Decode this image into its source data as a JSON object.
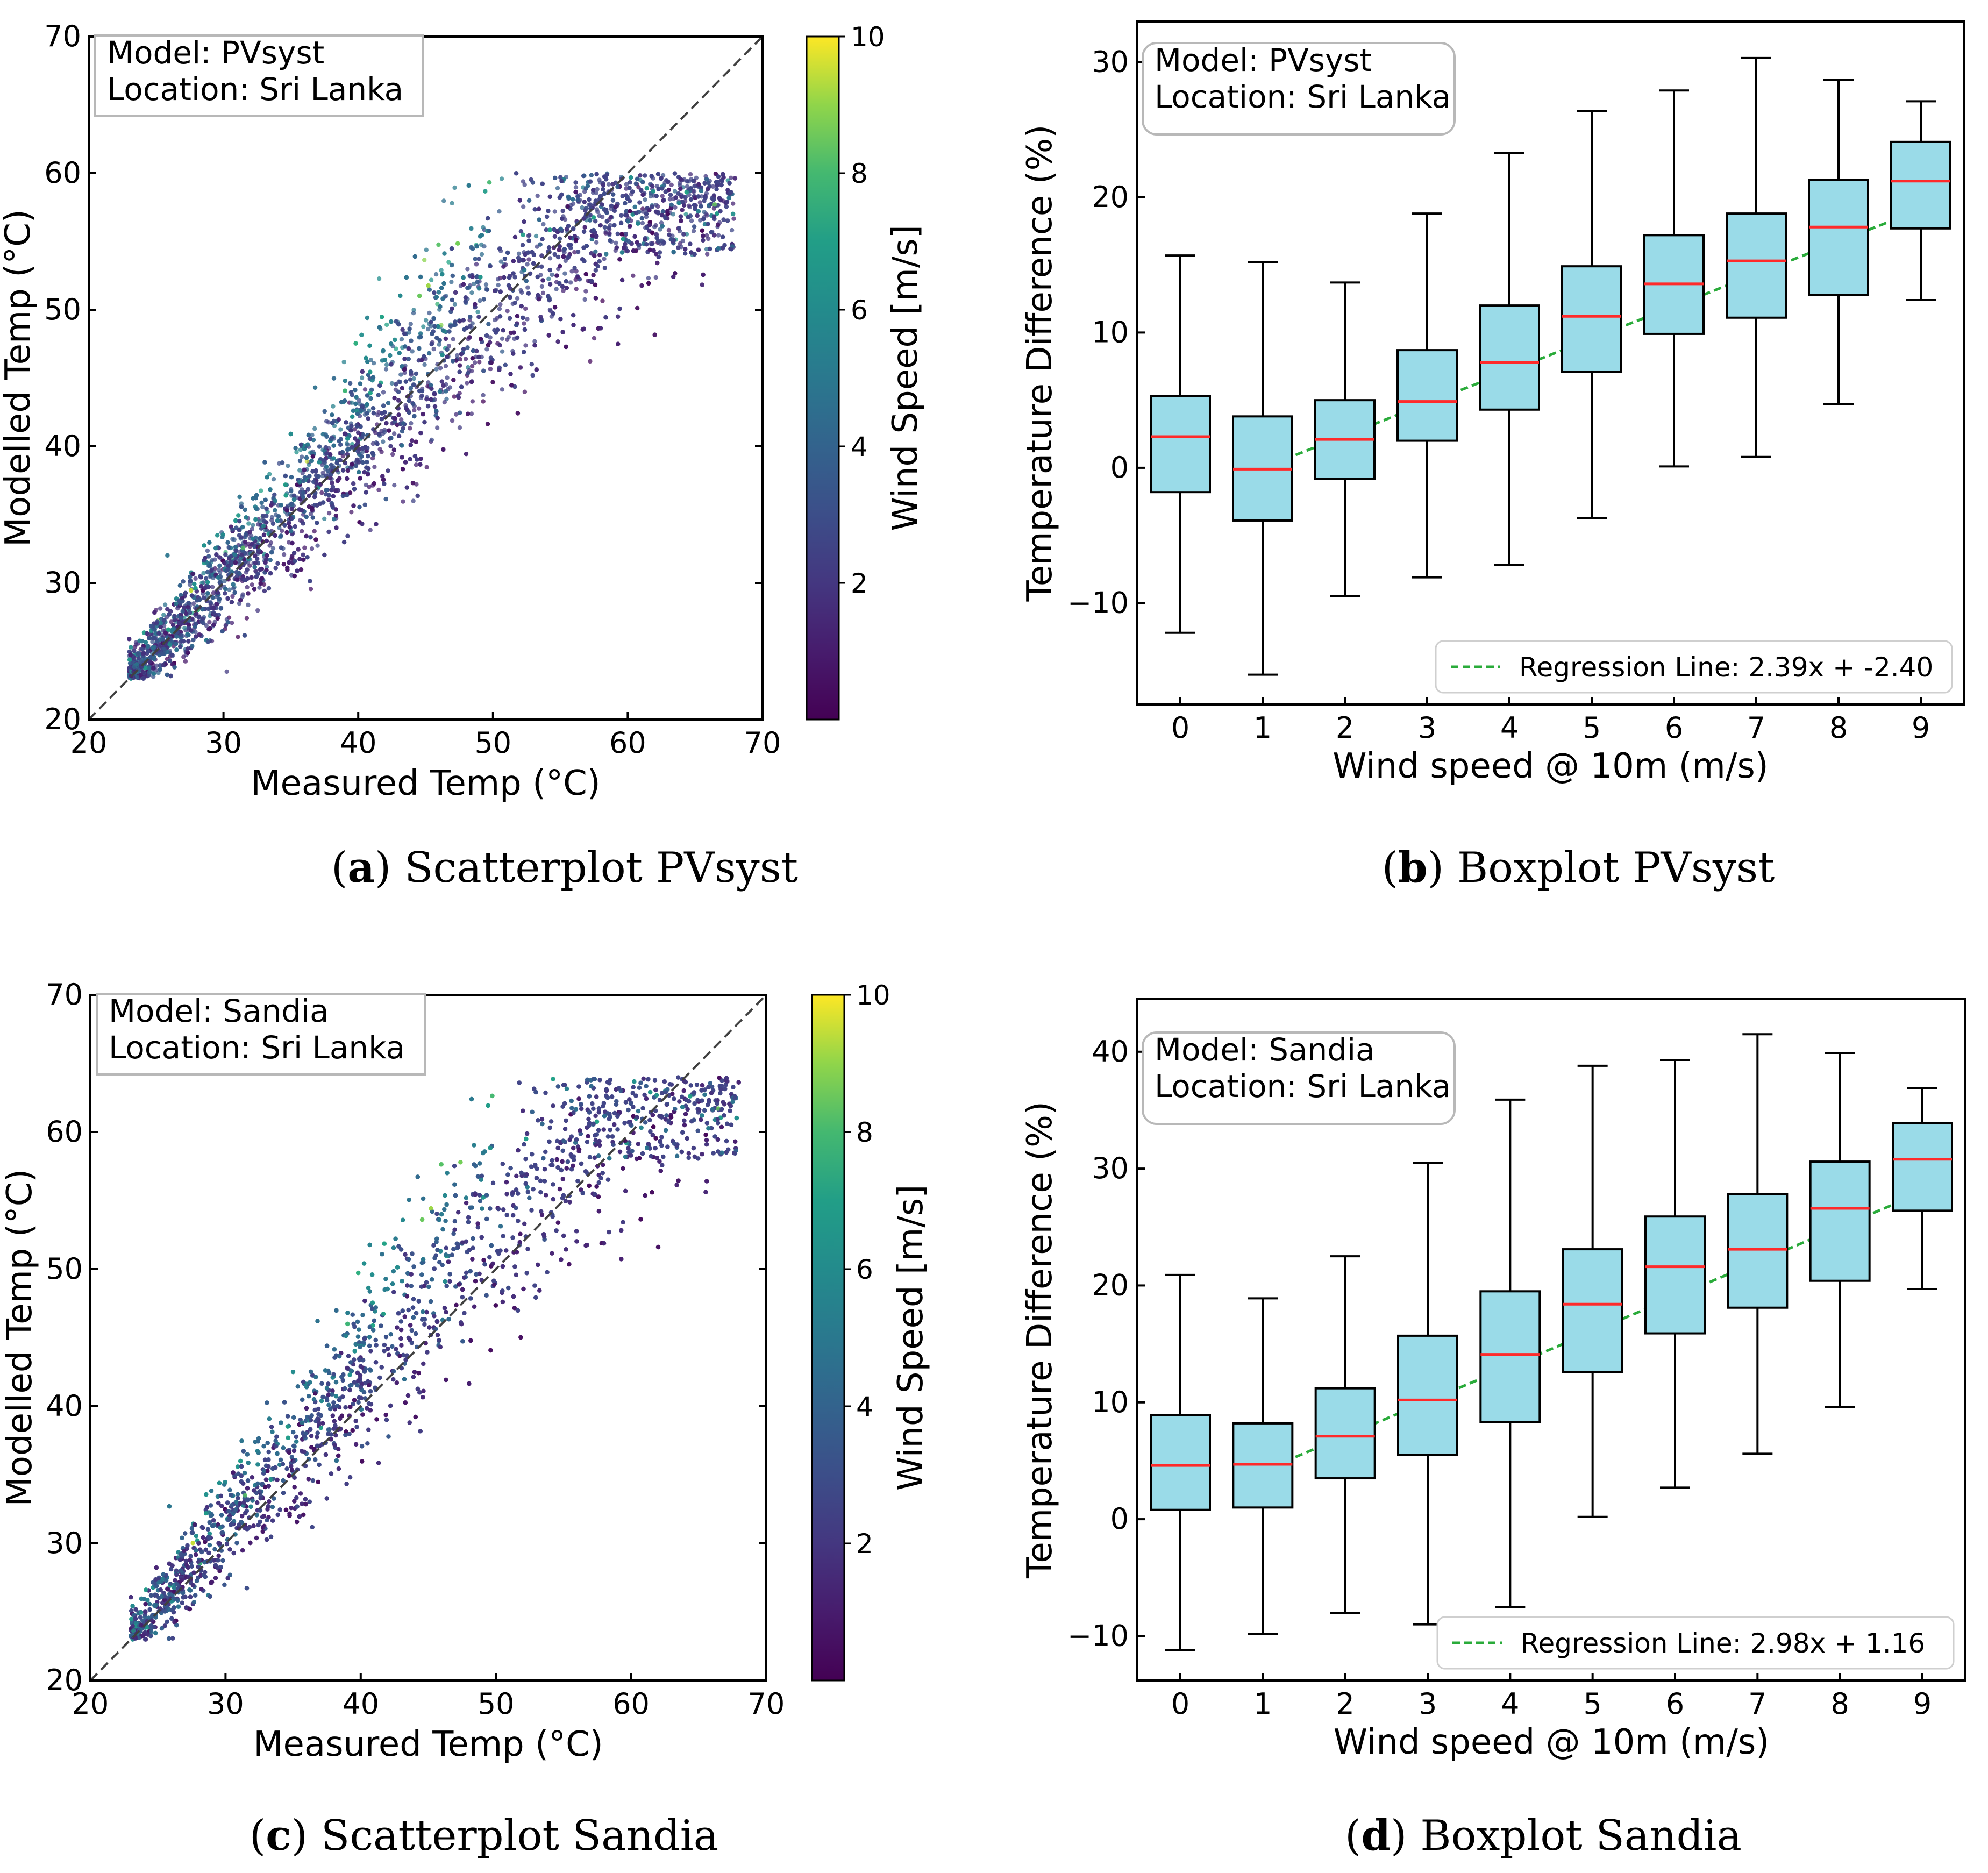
{
  "chart_data": [
    {
      "panel": "a",
      "type": "scatter",
      "caption_letter": "a",
      "caption_text": "Scatterplot PVsyst",
      "info_lines": [
        "Model: PVsyst",
        "Location: Sri Lanka"
      ],
      "xlabel": "Measured Temp (°C)",
      "ylabel": "Modelled Temp (°C)",
      "xlim": [
        20,
        70
      ],
      "ylim": [
        20,
        70
      ],
      "xticks": [
        20,
        30,
        40,
        50,
        60,
        70
      ],
      "yticks": [
        20,
        30,
        40,
        50,
        60,
        70
      ],
      "identity_line": true,
      "colorbar": {
        "label": "Wind Speed [m/s]",
        "range": [
          0,
          10
        ],
        "ticks": [
          2,
          4,
          6,
          8,
          10
        ],
        "colormap": "viridis"
      },
      "point_cloud": {
        "measured_range": [
          23,
          68
        ],
        "slope_low_wind": 0.82,
        "slope_high_wind": 1.3,
        "spread": 3.2
      }
    },
    {
      "panel": "b",
      "type": "box",
      "caption_letter": "b",
      "caption_text": "Boxplot PVsyst",
      "info_lines": [
        "Model: PVsyst",
        "Location: Sri Lanka"
      ],
      "xlabel": "Wind speed @ 10m (m/s)",
      "ylabel": "Temperature Difference (%)",
      "ylim": [
        -17.5,
        33
      ],
      "yticks": [
        -10,
        0,
        10,
        20,
        30
      ],
      "categories": [
        "0",
        "1",
        "2",
        "3",
        "4",
        "5",
        "6",
        "7",
        "8",
        "9"
      ],
      "boxes": [
        {
          "min": -12.2,
          "q1": -1.8,
          "median": 2.3,
          "q3": 5.3,
          "max": 15.7
        },
        {
          "min": -15.3,
          "q1": -3.9,
          "median": -0.1,
          "q3": 3.8,
          "max": 15.2
        },
        {
          "min": -9.5,
          "q1": -0.8,
          "median": 2.1,
          "q3": 5.0,
          "max": 13.7
        },
        {
          "min": -8.1,
          "q1": 2.0,
          "median": 4.9,
          "q3": 8.7,
          "max": 18.8
        },
        {
          "min": -7.2,
          "q1": 4.3,
          "median": 7.8,
          "q3": 12.0,
          "max": 23.3
        },
        {
          "min": -3.7,
          "q1": 7.1,
          "median": 11.2,
          "q3": 14.9,
          "max": 26.4
        },
        {
          "min": 0.1,
          "q1": 9.9,
          "median": 13.6,
          "q3": 17.2,
          "max": 27.9
        },
        {
          "min": 0.8,
          "q1": 11.1,
          "median": 15.3,
          "q3": 18.8,
          "max": 30.3
        },
        {
          "min": 4.7,
          "q1": 12.8,
          "median": 17.8,
          "q3": 21.3,
          "max": 28.7
        },
        {
          "min": 12.4,
          "q1": 17.7,
          "median": 21.2,
          "q3": 24.1,
          "max": 27.1
        }
      ],
      "regression": {
        "slope": 2.39,
        "intercept": -2.4,
        "label": "Regression Line: 2.39x + -2.40",
        "x_range": [
          1,
          9
        ]
      }
    },
    {
      "panel": "c",
      "type": "scatter",
      "caption_letter": "c",
      "caption_text": "Scatterplot Sandia",
      "info_lines": [
        "Model: Sandia",
        "Location: Sri Lanka"
      ],
      "xlabel": "Measured Temp (°C)",
      "ylabel": "Modelled Temp (°C)",
      "xlim": [
        20,
        70
      ],
      "ylim": [
        20,
        70
      ],
      "xticks": [
        20,
        30,
        40,
        50,
        60,
        70
      ],
      "yticks": [
        20,
        30,
        40,
        50,
        60,
        70
      ],
      "identity_line": true,
      "colorbar": {
        "label": "Wind Speed [m/s]",
        "range": [
          0,
          10
        ],
        "ticks": [
          2,
          4,
          6,
          8,
          10
        ],
        "colormap": "viridis"
      },
      "point_cloud": {
        "measured_range": [
          23,
          68
        ],
        "slope_low_wind": 0.92,
        "slope_high_wind": 1.42,
        "spread": 3.4
      }
    },
    {
      "panel": "d",
      "type": "box",
      "caption_letter": "d",
      "caption_text": "Boxplot Sandia",
      "info_lines": [
        "Model: Sandia",
        "Location: Sri Lanka"
      ],
      "xlabel": "Wind speed @ 10m (m/s)",
      "ylabel": "Temperature Difference (%)",
      "ylim": [
        -13.8,
        44.5
      ],
      "yticks": [
        -10,
        0,
        10,
        20,
        30,
        40
      ],
      "categories": [
        "0",
        "1",
        "2",
        "3",
        "4",
        "5",
        "6",
        "7",
        "8",
        "9"
      ],
      "boxes": [
        {
          "min": -11.2,
          "q1": 0.8,
          "median": 4.6,
          "q3": 8.9,
          "max": 20.9
        },
        {
          "min": -9.8,
          "q1": 1.0,
          "median": 4.7,
          "q3": 8.2,
          "max": 18.9
        },
        {
          "min": -8.0,
          "q1": 3.5,
          "median": 7.1,
          "q3": 11.2,
          "max": 22.5
        },
        {
          "min": -9.0,
          "q1": 5.5,
          "median": 10.2,
          "q3": 15.7,
          "max": 30.5
        },
        {
          "min": -7.5,
          "q1": 8.3,
          "median": 14.1,
          "q3": 19.5,
          "max": 35.9
        },
        {
          "min": 0.2,
          "q1": 12.6,
          "median": 18.4,
          "q3": 23.1,
          "max": 38.8
        },
        {
          "min": 2.7,
          "q1": 15.9,
          "median": 21.6,
          "q3": 25.9,
          "max": 39.3
        },
        {
          "min": 5.6,
          "q1": 18.1,
          "median": 23.1,
          "q3": 27.8,
          "max": 41.5
        },
        {
          "min": 9.6,
          "q1": 20.4,
          "median": 26.6,
          "q3": 30.6,
          "max": 39.9
        },
        {
          "min": 19.7,
          "q1": 26.4,
          "median": 30.8,
          "q3": 33.9,
          "max": 36.9
        }
      ],
      "regression": {
        "slope": 2.98,
        "intercept": 1.16,
        "label": "Regression Line: 2.98x + 1.16",
        "x_range": [
          1,
          9
        ]
      }
    }
  ],
  "colors": {
    "box_fill": "#9adbe8",
    "median": "#ff2a2a",
    "regression": "#2aab3a",
    "identity": "#404040",
    "axis": "#000000"
  }
}
